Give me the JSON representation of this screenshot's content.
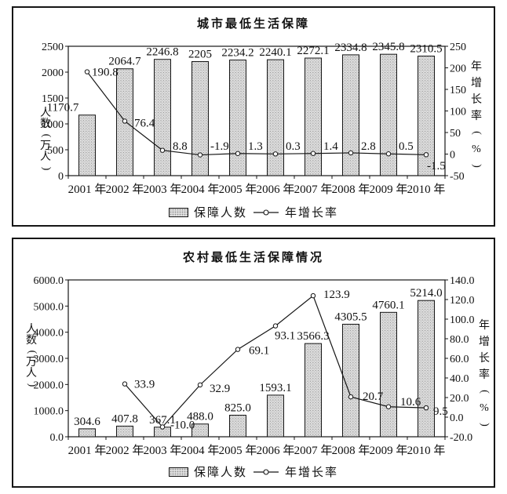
{
  "chart_data": [
    {
      "type": "bar+line",
      "title": "城市最低生活保障",
      "categories": [
        "2001 年",
        "2002 年",
        "2003 年",
        "2004 年",
        "2005 年",
        "2006 年",
        "2007 年",
        "2008 年",
        "2009 年",
        "2010 年"
      ],
      "y_left_axis": {
        "label": "人数(万人)",
        "range": [
          0,
          2500
        ],
        "ticks": [
          "0",
          "500",
          "1000",
          "1500",
          "2000",
          "2500"
        ]
      },
      "y_right_axis": {
        "label": "年增长率(%)",
        "range": [
          -50,
          250
        ],
        "ticks": [
          "-50",
          "0",
          "50",
          "100",
          "150",
          "200",
          "250"
        ]
      },
      "series": [
        {
          "name": "保障人数",
          "type": "bar",
          "axis": "left",
          "values": [
            1170.7,
            2064.7,
            2246.8,
            2205,
            2234.2,
            2240.1,
            2272.1,
            2334.8,
            2345.8,
            2310.5
          ],
          "labels": [
            "1170.7",
            "2064.7",
            "2246.8",
            "2205",
            "2234.2",
            "2240.1",
            "2272.1",
            "2334.8",
            "2345.8",
            "2310.5"
          ]
        },
        {
          "name": "年增长率",
          "type": "line",
          "axis": "right",
          "values": [
            190.8,
            76.4,
            8.8,
            -1.9,
            1.3,
            0.3,
            1.4,
            2.8,
            0.5,
            -1.5
          ],
          "labels": [
            "190.8",
            "76.4",
            "8.8",
            "-1.9",
            "1.3",
            "0.3",
            "1.4",
            "2.8",
            "0.5",
            "-1.5"
          ]
        }
      ],
      "legend": [
        "保障人数",
        "年增长率"
      ],
      "grid": "off",
      "legend_position": "bottom-center"
    },
    {
      "type": "bar+line",
      "title": "农村最低生活保障情况",
      "categories": [
        "2001 年",
        "2002 年",
        "2003 年",
        "2004 年",
        "2005 年",
        "2006 年",
        "2007 年",
        "2008 年",
        "2009 年",
        "2010 年"
      ],
      "y_left_axis": {
        "label": "人数(万人)",
        "range": [
          0,
          6000
        ],
        "ticks": [
          "0.0",
          "1000.0",
          "2000.0",
          "3000.0",
          "4000.0",
          "5000.0",
          "6000.0"
        ]
      },
      "y_right_axis": {
        "label": "年增长率(%)",
        "range": [
          -20,
          140
        ],
        "ticks": [
          "-20.0",
          "0.0",
          "20.0",
          "40.0",
          "60.0",
          "80.0",
          "100.0",
          "120.0",
          "140.0"
        ]
      },
      "series": [
        {
          "name": "保障人数",
          "type": "bar",
          "axis": "left",
          "values": [
            304.6,
            407.8,
            367.1,
            488.0,
            825.0,
            1593.1,
            3566.3,
            4305.5,
            4760.1,
            5214.0
          ],
          "labels": [
            "304.6",
            "407.8",
            "367.1",
            "488.0",
            "825.0",
            "1593.1",
            "3566.3",
            "4305.5",
            "4760.1",
            "5214.0"
          ]
        },
        {
          "name": "年增长率",
          "type": "line",
          "axis": "right",
          "values": [
            null,
            33.9,
            -10.0,
            32.9,
            69.1,
            93.1,
            123.9,
            20.7,
            10.6,
            9.5
          ],
          "labels": [
            "",
            "33.9",
            "-10.0",
            "32.9",
            "69.1",
            "93.1",
            "123.9",
            "20.7",
            "10.6",
            "9.5"
          ]
        }
      ],
      "legend": [
        "保障人数",
        "年增长率"
      ],
      "grid": "off",
      "legend_position": "bottom-center"
    }
  ]
}
